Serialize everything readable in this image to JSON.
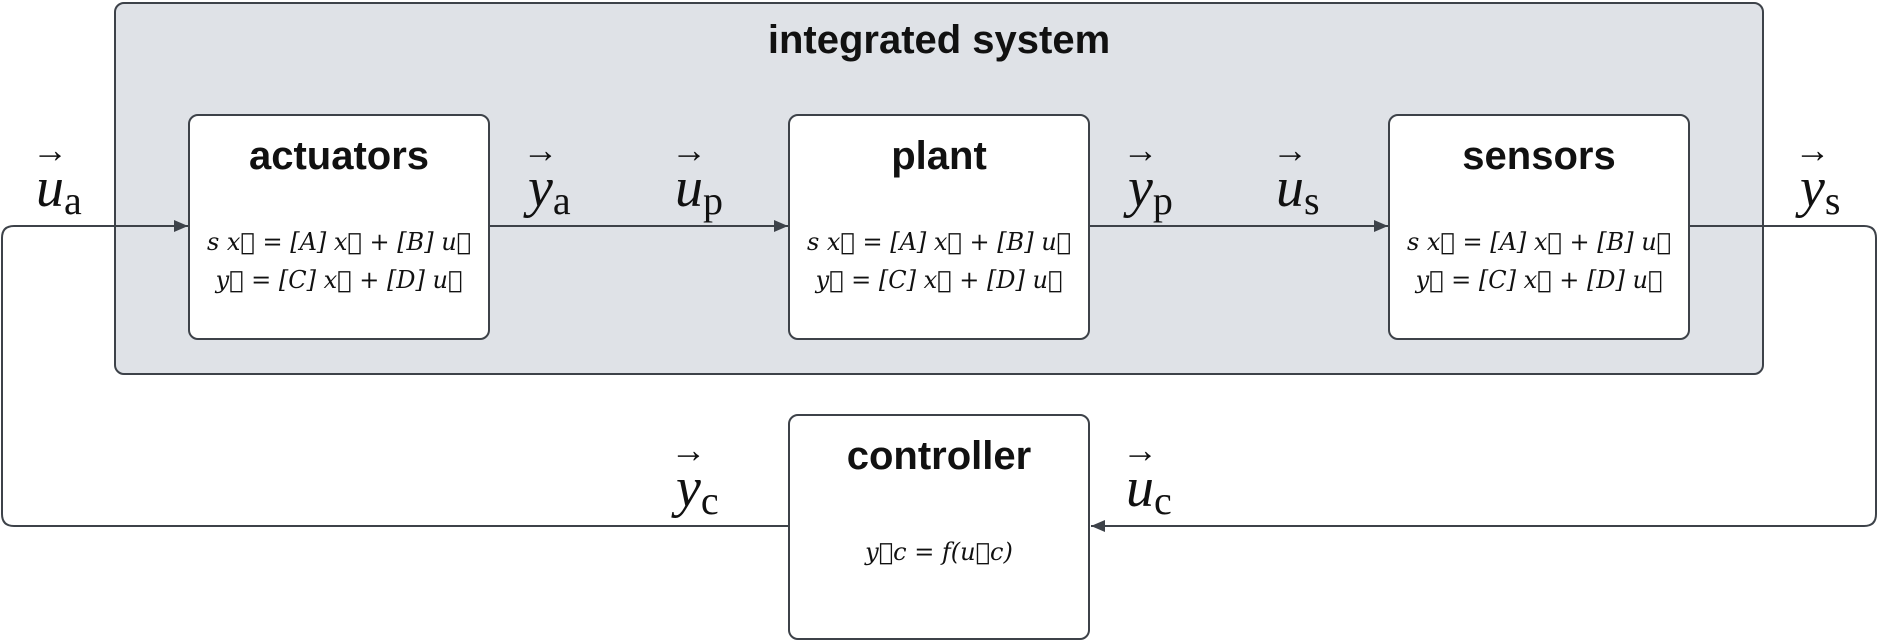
{
  "diagram": {
    "container_title": "integrated system",
    "blocks": {
      "actuators": {
        "title": "actuators",
        "eq1": "s x⃗ = [A] x⃗ + [B] u⃗",
        "eq2": "y⃗ = [C] x⃗ + [D] u⃗"
      },
      "plant": {
        "title": "plant",
        "eq1": "s x⃗ = [A] x⃗ + [B] u⃗",
        "eq2": "y⃗ = [C] x⃗ + [D] u⃗"
      },
      "sensors": {
        "title": "sensors",
        "eq1": "s x⃗ = [A] x⃗ + [B] u⃗",
        "eq2": "y⃗ = [C] x⃗ + [D] u⃗"
      },
      "controller": {
        "title": "controller",
        "eq": "y⃗c = f(u⃗c)"
      }
    },
    "signals": {
      "u_a": {
        "base": "u",
        "sub": "a"
      },
      "y_a": {
        "base": "y",
        "sub": "a"
      },
      "u_p": {
        "base": "u",
        "sub": "p"
      },
      "y_p": {
        "base": "y",
        "sub": "p"
      },
      "u_s": {
        "base": "u",
        "sub": "s"
      },
      "y_s": {
        "base": "y",
        "sub": "s"
      },
      "y_c": {
        "base": "y",
        "sub": "c"
      },
      "u_c": {
        "base": "u",
        "sub": "c"
      }
    },
    "colors": {
      "stroke": "#3d4249",
      "container_fill": "#dfe2e7",
      "block_fill": "#ffffff"
    }
  }
}
